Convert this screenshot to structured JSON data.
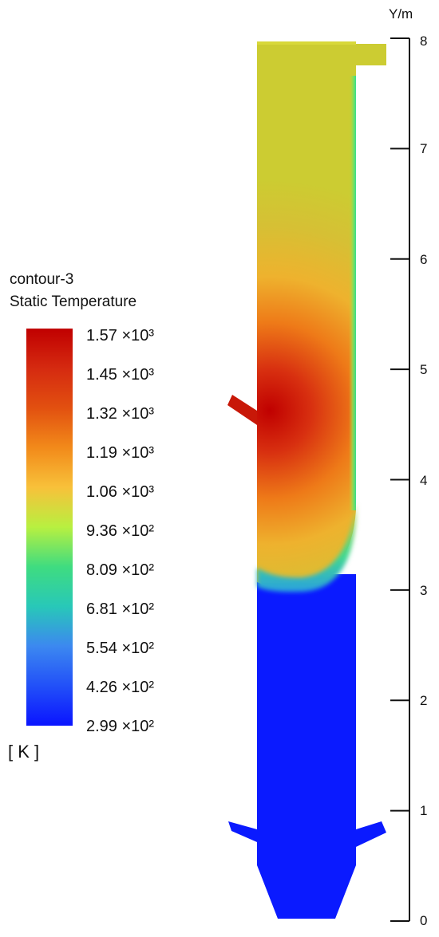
{
  "legend": {
    "title_line1": "contour-3",
    "title_line2": "Static Temperature",
    "unit": "[ K ]",
    "labels": [
      "1.57 ×10³",
      "1.45 ×10³",
      "1.32 ×10³",
      "1.19 ×10³",
      "1.06 ×10³",
      "9.36 ×10²",
      "8.09 ×10²",
      "6.81 ×10²",
      "5.54 ×10²",
      "4.26 ×10²",
      "2.99 ×10²"
    ],
    "colors": [
      "#c00000",
      "#d52a10",
      "#e25010",
      "#f28a1a",
      "#f8c13a",
      "#b8f040",
      "#3fdc80",
      "#28c8b8",
      "#3c88f0",
      "#2250f8",
      "#0a14ff"
    ]
  },
  "axis": {
    "label": "Y/m",
    "ticks": [
      "0",
      "1",
      "2",
      "3",
      "4",
      "5",
      "6",
      "7",
      "8"
    ]
  },
  "field": {
    "hot_color": "#c00000",
    "warm_color": "#e8b82a",
    "upper_color": "#cccc32",
    "edge_color": "#30e090",
    "cold_color": "#0a1aff"
  }
}
